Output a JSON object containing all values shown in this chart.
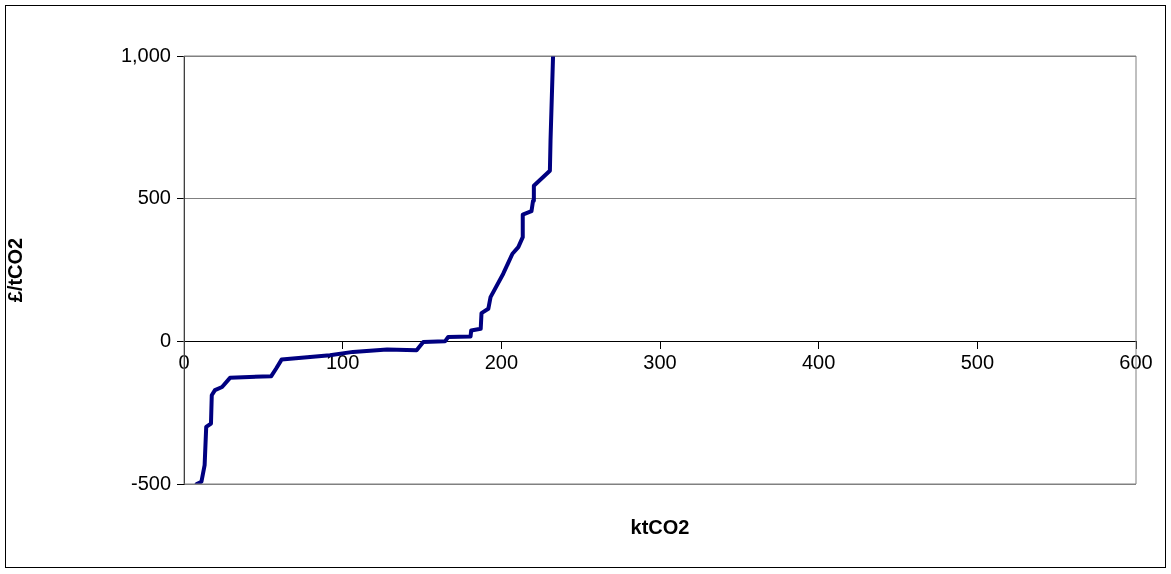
{
  "chart_data": {
    "type": "line",
    "xlabel": "ktCO2",
    "ylabel": "£/tCO2",
    "xlim": [
      0,
      600
    ],
    "xticks": [
      0,
      100,
      200,
      300,
      400,
      500,
      600
    ],
    "ylim": [
      -500,
      1000
    ],
    "yticks": [
      -500,
      0,
      500,
      {
        "value": 1000,
        "label": "1,000"
      }
    ],
    "grid": "y",
    "legend": false,
    "marker": "none",
    "line_style": "solid",
    "series": [
      {
        "color": "#000080",
        "x": [
          8,
          11,
          13,
          14,
          17,
          17.5,
          19.5,
          24,
          29,
          55,
          58,
          61.5,
          92,
          106.5,
          128,
          146.6,
          150.8,
          164.5,
          166.5,
          180.6,
          181,
          187,
          187.5,
          191.8,
          193.2,
          201.2,
          207,
          210.7,
          213.5,
          213.5,
          219,
          220,
          220.5,
          230.6,
          231,
          232.6
        ],
        "values": [
          -500,
          -492,
          -434,
          -300,
          -288,
          -189,
          -171,
          -160,
          -128,
          -122,
          -96,
          -64,
          -49,
          -37,
          -29,
          -31,
          -2,
          0,
          15,
          17,
          38,
          44,
          99,
          114,
          155,
          237,
          307,
          330,
          365,
          444,
          456,
          493,
          545,
          598,
          703,
          1000
        ]
      }
    ]
  }
}
